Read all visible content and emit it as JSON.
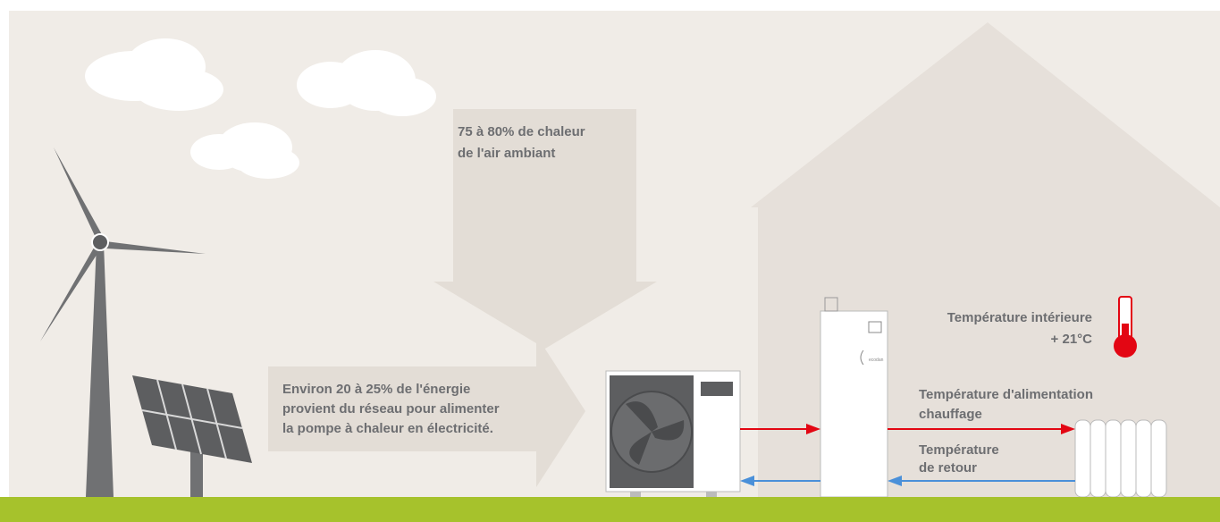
{
  "air_label": [
    "75 à 80% de chaleur",
    "de l'air ambiant"
  ],
  "grid_label": [
    "Environ 20 à 25% de l'énergie",
    "provient du réseau pour alimenter",
    "la pompe à chaleur en électricité."
  ],
  "indoor_temperature": [
    "Température intérieure",
    "+ 21°C"
  ],
  "supply_temperature": [
    "Température d'alimentation",
    "chauffage"
  ],
  "return_temperature": [
    "Température",
    "de retour"
  ],
  "indoor_unit_brand": "ecodan"
}
